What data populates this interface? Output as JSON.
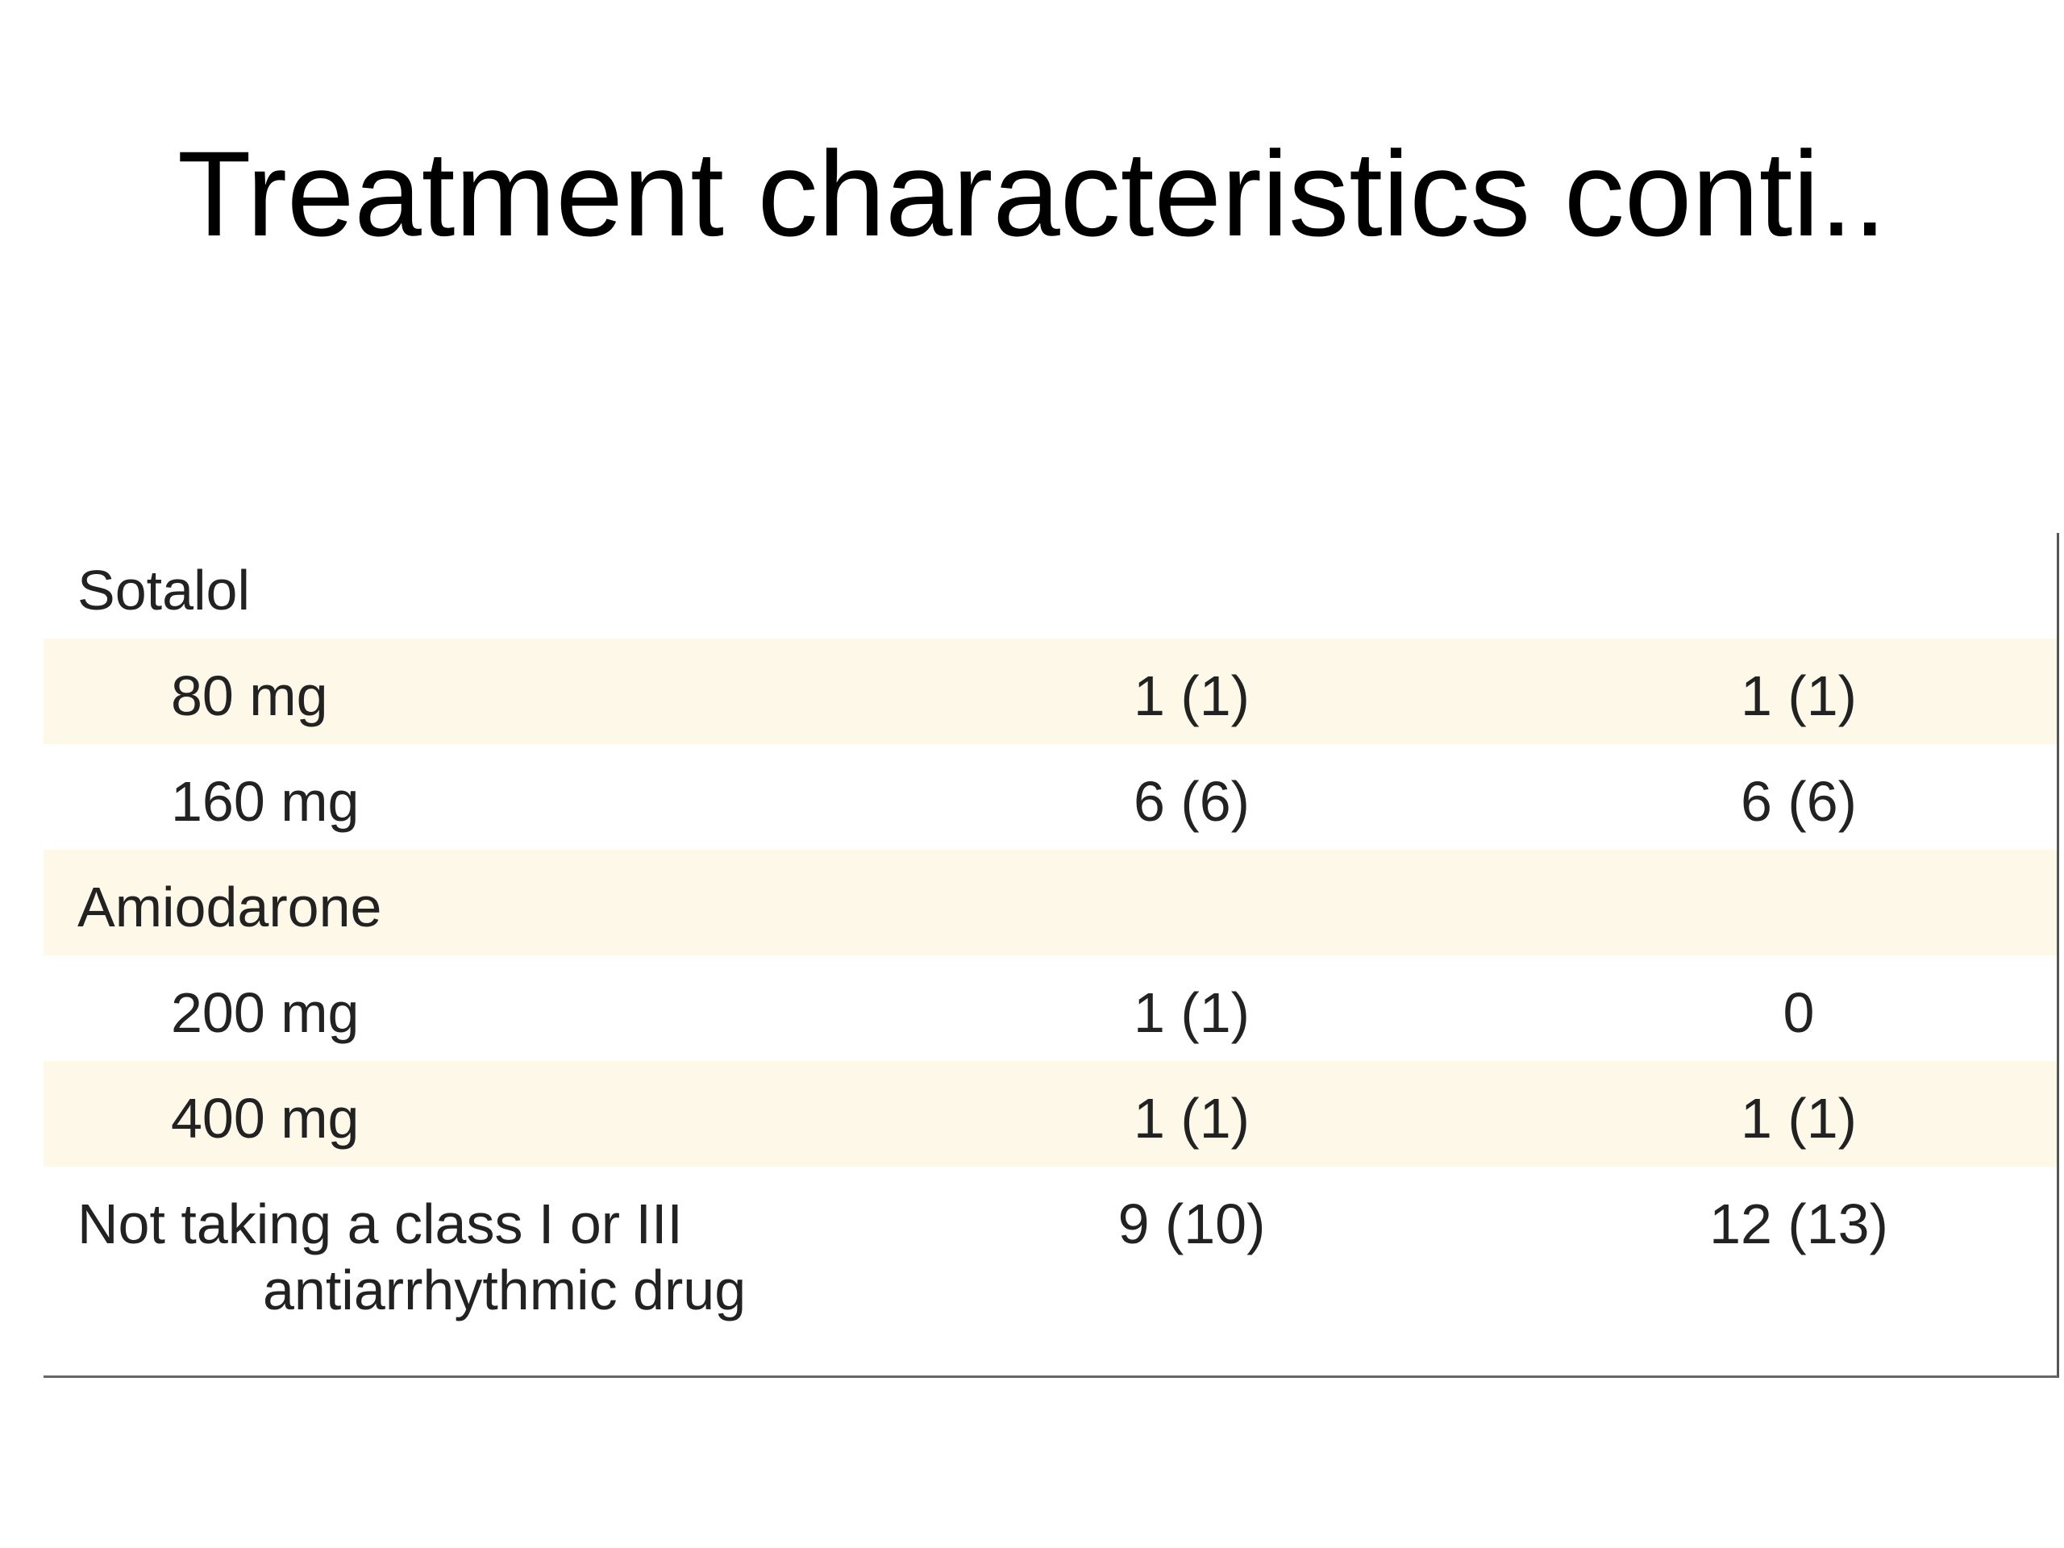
{
  "header": {
    "title": "Treatment characteristics conti.."
  },
  "table": {
    "groups": [
      {
        "label": "Sotalol",
        "rows": [
          [
            "80 mg",
            "1 (1)",
            "1 (1)"
          ],
          [
            "160 mg",
            "6 (6)",
            "6 (6)"
          ]
        ]
      },
      {
        "label": "Amiodarone",
        "rows": [
          [
            "200 mg",
            "1 (1)",
            "0"
          ],
          [
            "400 mg",
            "1 (1)",
            "1 (1)"
          ]
        ]
      }
    ],
    "last": {
      "label": [
        "Not taking a class I or III",
        "antiarrhythmic drug"
      ],
      "values": [
        "9 (10)",
        "12 (13)"
      ]
    }
  }
}
